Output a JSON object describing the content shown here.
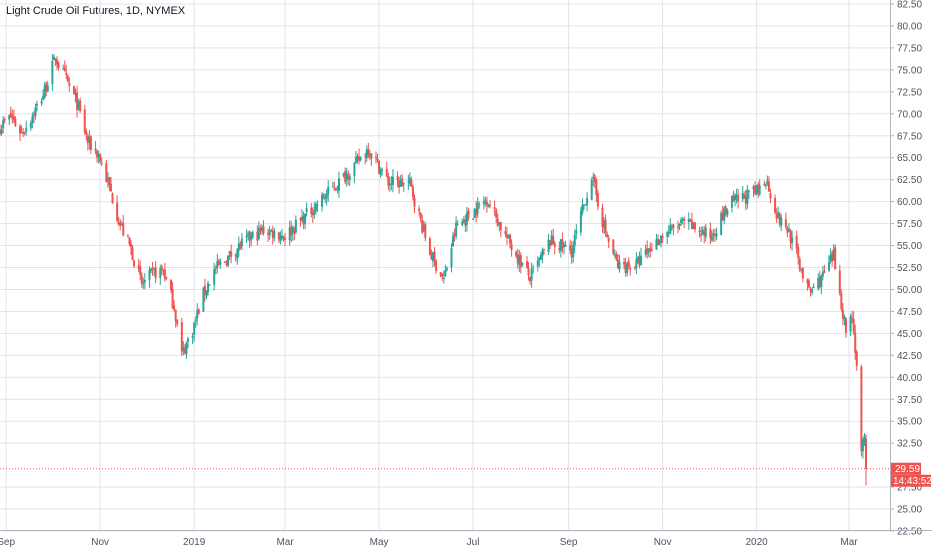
{
  "chart_data": {
    "type": "candlestick",
    "title": "Light Crude Oil Futures, 1D, NYMEX",
    "y_ticks": [
      "82.50",
      "80.00",
      "77.50",
      "75.00",
      "72.50",
      "70.00",
      "67.50",
      "65.00",
      "62.50",
      "60.00",
      "57.50",
      "55.00",
      "52.50",
      "50.00",
      "47.50",
      "45.00",
      "42.50",
      "40.00",
      "37.50",
      "35.00",
      "32.50",
      "27.50",
      "25.00",
      "22.50"
    ],
    "y_range": [
      22.5,
      82.5
    ],
    "x_ticks": [
      "Sep",
      "Nov",
      "2019",
      "Mar",
      "May",
      "Jul",
      "Sep",
      "Nov",
      "2020",
      "Mar"
    ],
    "x_range": [
      "2018-08-28",
      "2020-03-12"
    ],
    "last_price": 29.59,
    "countdown": "14:43:52",
    "close_path": [
      [
        "2018-08-28",
        68.5
      ],
      [
        "2018-09-04",
        69.7
      ],
      [
        "2018-09-11",
        67.8
      ],
      [
        "2018-09-18",
        69.8
      ],
      [
        "2018-09-25",
        72.2
      ],
      [
        "2018-10-03",
        76.4
      ],
      [
        "2018-10-10",
        73.8
      ],
      [
        "2018-10-17",
        71.2
      ],
      [
        "2018-10-24",
        66.8
      ],
      [
        "2018-10-31",
        65.3
      ],
      [
        "2018-11-07",
        61.6
      ],
      [
        "2018-11-14",
        57.4
      ],
      [
        "2018-11-21",
        54.6
      ],
      [
        "2018-11-28",
        50.5
      ],
      [
        "2018-12-05",
        51.8
      ],
      [
        "2018-12-12",
        52.2
      ],
      [
        "2018-12-19",
        48.1
      ],
      [
        "2018-12-24",
        42.6
      ],
      [
        "2018-12-31",
        45.4
      ],
      [
        "2019-01-07",
        49.5
      ],
      [
        "2019-01-14",
        52.1
      ],
      [
        "2019-01-21",
        53.3
      ],
      [
        "2019-02-01",
        55.2
      ],
      [
        "2019-02-15",
        56.8
      ],
      [
        "2019-03-01",
        56.1
      ],
      [
        "2019-03-15",
        58.5
      ],
      [
        "2019-04-01",
        61.5
      ],
      [
        "2019-04-15",
        64.1
      ],
      [
        "2019-04-24",
        66.1
      ],
      [
        "2019-05-07",
        62.2
      ],
      [
        "2019-05-21",
        62.0
      ],
      [
        "2019-06-03",
        54.2
      ],
      [
        "2019-06-12",
        51.1
      ],
      [
        "2019-06-20",
        57.1
      ],
      [
        "2019-07-01",
        58.8
      ],
      [
        "2019-07-10",
        60.4
      ],
      [
        "2019-07-22",
        56.1
      ],
      [
        "2019-08-07",
        51.3
      ],
      [
        "2019-08-20",
        55.5
      ],
      [
        "2019-09-03",
        54.4
      ],
      [
        "2019-09-16",
        62.9
      ],
      [
        "2019-09-25",
        56.4
      ],
      [
        "2019-10-03",
        52.6
      ],
      [
        "2019-10-15",
        52.8
      ],
      [
        "2019-11-01",
        56.2
      ],
      [
        "2019-11-15",
        57.6
      ],
      [
        "2019-12-02",
        56.0
      ],
      [
        "2019-12-15",
        59.8
      ],
      [
        "2020-01-02",
        61.2
      ],
      [
        "2020-01-07",
        62.7
      ],
      [
        "2020-01-15",
        58.1
      ],
      [
        "2020-01-22",
        56.6
      ],
      [
        "2020-02-04",
        49.6
      ],
      [
        "2020-02-13",
        51.5
      ],
      [
        "2020-02-20",
        53.8
      ],
      [
        "2020-02-28",
        45.3
      ],
      [
        "2020-03-03",
        47.2
      ],
      [
        "2020-03-06",
        41.3
      ],
      [
        "2020-03-09",
        31.1
      ],
      [
        "2020-03-11",
        32.9
      ],
      [
        "2020-03-12",
        29.59
      ]
    ],
    "colors": {
      "up": "#26a69a",
      "down": "#ef5350",
      "grid": "#e0e3eb",
      "axis_text": "#50535e"
    },
    "grid": true
  }
}
